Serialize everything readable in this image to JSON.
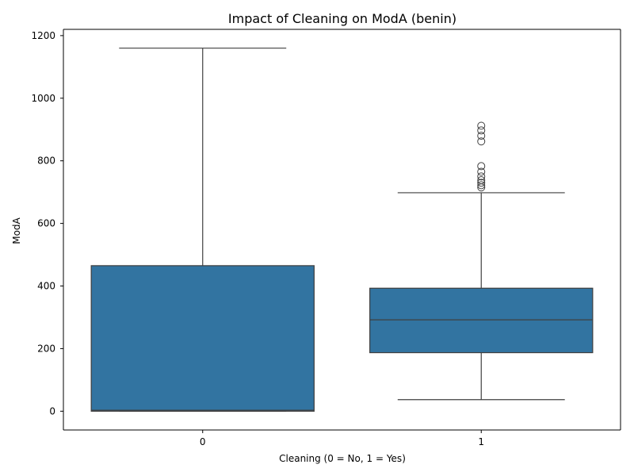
{
  "chart_data": {
    "type": "box",
    "title": "Impact of Cleaning on ModA (benin)",
    "xlabel": "Cleaning (0 = No, 1 = Yes)",
    "ylabel": "ModA",
    "categories": [
      "0",
      "1"
    ],
    "ylim": [
      -60,
      1220
    ],
    "yticks": [
      0,
      200,
      400,
      600,
      800,
      1000,
      1200
    ],
    "grid": false,
    "color": "#3274a1",
    "line_color": "#3f3f3f",
    "boxes": [
      {
        "category": "0",
        "whisker_low": 0,
        "q1": 0,
        "median": 3,
        "q3": 465,
        "whisker_high": 1160,
        "outliers": []
      },
      {
        "category": "1",
        "whisker_low": 37,
        "q1": 187,
        "median": 292,
        "q3": 393,
        "whisker_high": 698,
        "outliers": [
          715,
          722,
          730,
          738,
          750,
          765,
          783,
          862,
          880,
          897,
          912
        ]
      }
    ]
  }
}
